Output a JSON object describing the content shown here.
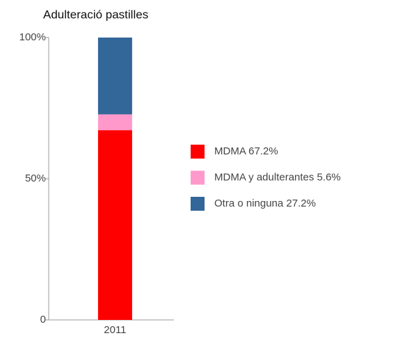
{
  "chart_data": {
    "type": "stacked_bar",
    "title": "Adulteració pastilles",
    "categories": [
      "2011"
    ],
    "series": [
      {
        "name": "MDMA 67.2%",
        "color": "#ff0000",
        "values": [
          67.2
        ]
      },
      {
        "name": "MDMA y adulterantes 5.6%",
        "color": "#ff99cc",
        "values": [
          5.6
        ]
      },
      {
        "name": "Otra o ninguna 27.2%",
        "color": "#336699",
        "values": [
          27.2
        ]
      }
    ],
    "ylim": [
      0,
      100
    ],
    "yticks": [
      0,
      {
        "value": 50,
        "label": "50%"
      },
      {
        "value": 100,
        "label": "100%"
      }
    ],
    "legend": "right"
  }
}
